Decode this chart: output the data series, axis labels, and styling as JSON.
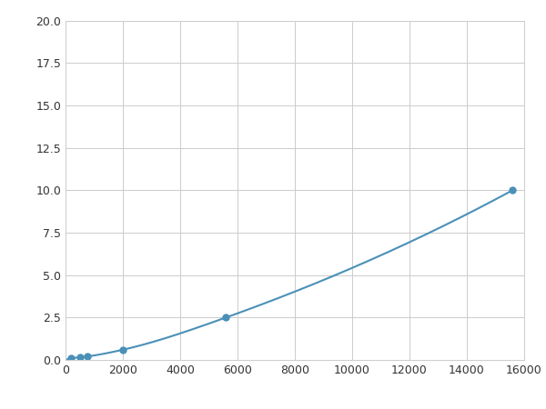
{
  "x": [
    0,
    200,
    500,
    750,
    2000,
    5600,
    15600
  ],
  "y": [
    0.0,
    0.1,
    0.15,
    0.2,
    0.6,
    2.5,
    10.0
  ],
  "line_color": "#4a90b8",
  "marker_x": [
    200,
    500,
    750,
    2000,
    5600,
    15600
  ],
  "marker_y": [
    0.1,
    0.15,
    0.2,
    0.6,
    2.5,
    10.0
  ],
  "marker_color": "#4a90b8",
  "marker_size": 5,
  "line_width": 1.5,
  "xlim": [
    0,
    16000
  ],
  "ylim": [
    0,
    20.0
  ],
  "xticks": [
    0,
    2000,
    4000,
    6000,
    8000,
    10000,
    12000,
    14000,
    16000
  ],
  "yticks": [
    0.0,
    2.5,
    5.0,
    7.5,
    10.0,
    12.5,
    15.0,
    17.5,
    20.0
  ],
  "grid": true,
  "background_color": "#ffffff",
  "figure_background": "#ffffff"
}
